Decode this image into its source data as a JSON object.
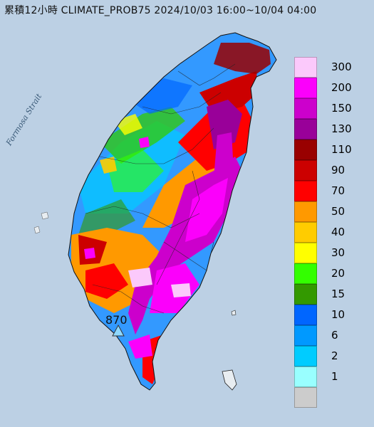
{
  "title": "累積12小時 CLIMATE_PROB75 2024/10/03 16:00~10/04 04:00",
  "map": {
    "strait_label": "Formosa Strait",
    "max_value_label": "870",
    "colors": {
      "sea": "#bcd0e4",
      "land_gray": "#d7dde2"
    }
  },
  "legend": {
    "items": [
      {
        "label": "300",
        "color": "#fbc9fb"
      },
      {
        "label": "200",
        "color": "#fb00fb"
      },
      {
        "label": "150",
        "color": "#cc00cc"
      },
      {
        "label": "130",
        "color": "#990099"
      },
      {
        "label": "110",
        "color": "#990000"
      },
      {
        "label": "90",
        "color": "#cc0000"
      },
      {
        "label": "70",
        "color": "#ff0000"
      },
      {
        "label": "50",
        "color": "#ff9900"
      },
      {
        "label": "40",
        "color": "#ffcc00"
      },
      {
        "label": "30",
        "color": "#ffff00"
      },
      {
        "label": "20",
        "color": "#33ff00"
      },
      {
        "label": "15",
        "color": "#339900"
      },
      {
        "label": "10",
        "color": "#0066ff"
      },
      {
        "label": "6",
        "color": "#0099ff"
      },
      {
        "label": "2",
        "color": "#00ccff"
      },
      {
        "label": "1",
        "color": "#99ffff"
      },
      {
        "label": "",
        "color": "#cccccc"
      }
    ]
  }
}
